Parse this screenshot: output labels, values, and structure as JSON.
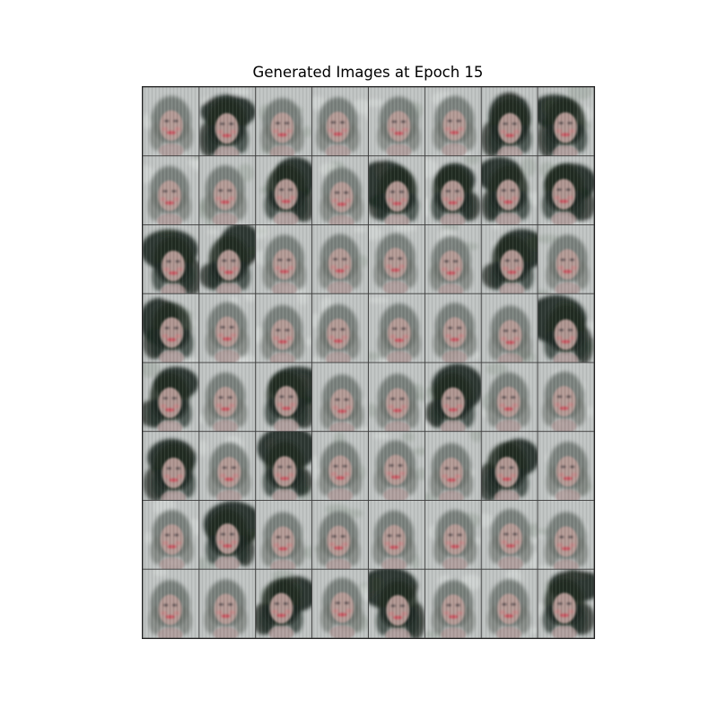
{
  "figure": {
    "title": "Generated Images at Epoch 15"
  },
  "grid": {
    "rows": 8,
    "cols": 8,
    "tile_content": "generated-face",
    "colors": {
      "background": "#bfc3c2",
      "hair_dark": "#1f2a22",
      "hair_mid": "#6f7571",
      "skin": "#b59a96",
      "lips": "#c8505c",
      "separator": "#3a3a3a"
    },
    "dark_hair_tiles": [
      1,
      6,
      7,
      10,
      12,
      13,
      14,
      15,
      16,
      17,
      22,
      24,
      31,
      32,
      34,
      37,
      40,
      42,
      46,
      49,
      58,
      60,
      63
    ]
  }
}
